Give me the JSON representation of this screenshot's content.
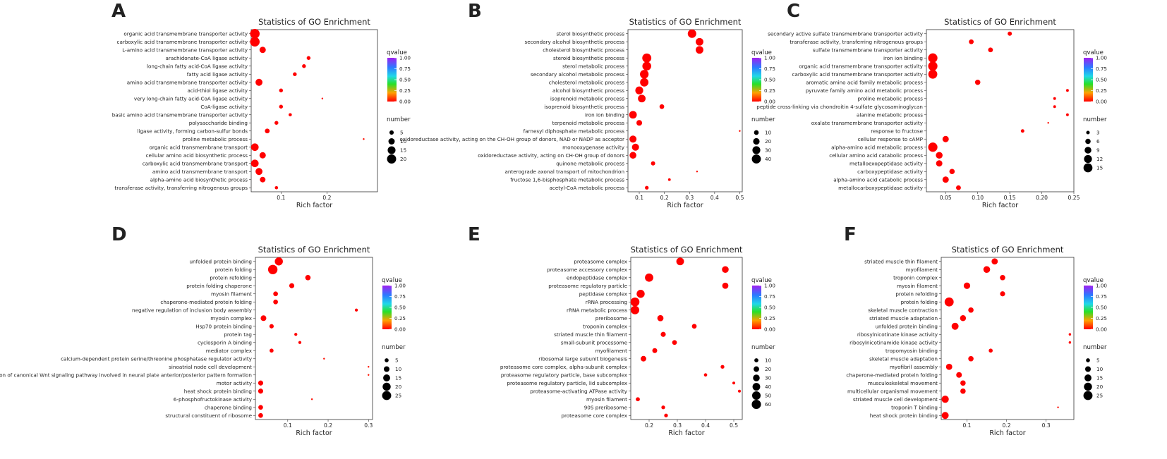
{
  "colors": {
    "qvalue_low": "#ff0000",
    "qvalue_high": "#a020f0",
    "dot": "#ee1c1c",
    "size_legend_dot": "#000000"
  },
  "chart_data": [
    {
      "type": "scatter",
      "panel": "A",
      "title": "Statistics of GO Enrichment",
      "xlabel": "Rich factor",
      "ylabel": "",
      "xlim": [
        0.035,
        0.31
      ],
      "xticks": [
        0.1,
        0.2
      ],
      "xtick_labels": [
        "0.1",
        "0.2"
      ],
      "qvalue_legend": {
        "title": "qvalue",
        "ticks": [
          1.0,
          0.75,
          0.5,
          0.25,
          0.0
        ],
        "tick_labels": [
          "1.00",
          "0.75",
          "0.50",
          "0.25",
          "0.00"
        ]
      },
      "size_legend": {
        "title": "number",
        "values": [
          5,
          10,
          15,
          20
        ],
        "min": 1,
        "max": 22
      },
      "categories": [
        "organic acid transmembrane transporter activity",
        "carboxylic acid transmembrane transporter activity",
        "L-amino acid transmembrane transporter activity",
        "arachidonate-CoA ligase activity",
        "long-chain fatty acid-CoA ligase activity",
        "fatty acid ligase activity",
        "amino acid transmembrane transporter activity",
        "acid-thiol ligase activity",
        "very long-chain fatty acid-CoA ligase activity",
        "CoA-ligase activity",
        "basic amino acid transmembrane transporter activity",
        "polysaccharide binding",
        "ligase activity, forming carbon-sulfur bonds",
        "proline metabolic process",
        "organic acid transmembrane transport",
        "cellular amino acid biosynthetic process",
        "carboxylic acid transmembrane transport",
        "amino acid transmembrane transport",
        "alpha-amino acid biosynthetic process",
        "transferase activity, transferring nitrogenous groups"
      ],
      "x": [
        0.043,
        0.043,
        0.06,
        0.16,
        0.15,
        0.13,
        0.052,
        0.1,
        0.19,
        0.1,
        0.12,
        0.09,
        0.07,
        0.28,
        0.043,
        0.06,
        0.043,
        0.052,
        0.06,
        0.09
      ],
      "number": [
        22,
        22,
        10,
        4,
        4,
        4,
        12,
        4,
        1,
        4,
        3,
        4,
        6,
        1,
        14,
        10,
        14,
        12,
        8,
        3
      ],
      "qvalue": [
        0.0,
        0.0,
        0.0,
        0.0,
        0.0,
        0.0,
        0.0,
        0.0,
        0.01,
        0.0,
        0.0,
        0.0,
        0.0,
        0.02,
        0.0,
        0.0,
        0.0,
        0.0,
        0.0,
        0.0
      ]
    },
    {
      "type": "scatter",
      "panel": "B",
      "title": "Statistics of GO Enrichment",
      "xlabel": "Rich factor",
      "ylabel": "",
      "xlim": [
        0.055,
        0.51
      ],
      "xticks": [
        0.1,
        0.2,
        0.3,
        0.4,
        0.5
      ],
      "xtick_labels": [
        "0.1",
        "0.2",
        "0.3",
        "0.4",
        "0.5"
      ],
      "qvalue_legend": {
        "title": "qvalue",
        "ticks": [
          1.0,
          0.75,
          0.5,
          0.25,
          0.0
        ],
        "tick_labels": [
          "1.00",
          "0.75",
          "0.50",
          "0.25",
          "0.00"
        ]
      },
      "size_legend": {
        "title": "number",
        "values": [
          10,
          20,
          30,
          40
        ],
        "min": 1,
        "max": 45
      },
      "categories": [
        "sterol biosynthetic process",
        "secondary alcohol biosynthetic process",
        "cholesterol biosynthetic process",
        "steroid biosynthetic process",
        "sterol metabolic process",
        "secondary alcohol metabolic process",
        "cholesterol metabolic process",
        "alcohol biosynthetic process",
        "isoprenoid metabolic process",
        "isoprenoid biosynthetic process",
        "iron ion binding",
        "terpenoid metabolic process",
        "farnesyl diphosphate metabolic process",
        "oxidoreductase activity, acting on the CH-OH group of donors, NAD or NADP as acceptor",
        "monooxygenase activity",
        "oxidoreductase activity, acting on CH-OH group of donors",
        "quinone metabolic process",
        "anterograde axonal transport of mitochondrion",
        "fructose 1,6-bisphosphate metabolic process",
        "acetyl-CoA metabolic process"
      ],
      "x": [
        0.31,
        0.34,
        0.34,
        0.13,
        0.13,
        0.12,
        0.12,
        0.1,
        0.11,
        0.19,
        0.075,
        0.1,
        0.5,
        0.075,
        0.085,
        0.075,
        0.155,
        0.33,
        0.22,
        0.13
      ],
      "number": [
        35,
        28,
        28,
        40,
        38,
        36,
        34,
        30,
        28,
        10,
        28,
        15,
        1,
        24,
        24,
        22,
        8,
        1,
        3,
        6
      ],
      "qvalue": [
        0.0,
        0.0,
        0.0,
        0.0,
        0.0,
        0.0,
        0.0,
        0.0,
        0.0,
        0.0,
        0.0,
        0.0,
        0.02,
        0.0,
        0.0,
        0.0,
        0.0,
        0.02,
        0.0,
        0.0
      ]
    },
    {
      "type": "scatter",
      "panel": "C",
      "title": "Statistics of GO Enrichment",
      "xlabel": "Rich factor",
      "ylabel": "",
      "xlim": [
        0.02,
        0.25
      ],
      "xticks": [
        0.05,
        0.1,
        0.15,
        0.2,
        0.25
      ],
      "xtick_labels": [
        "0.05",
        "0.10",
        "0.15",
        "0.20",
        "0.25"
      ],
      "qvalue_legend": {
        "title": "qvalue",
        "ticks": [
          1.0,
          0.75,
          0.5,
          0.25,
          0.0
        ],
        "tick_labels": [
          "1.00",
          "0.75",
          "0.50",
          "0.25",
          "0.00"
        ]
      },
      "size_legend": {
        "title": "number",
        "values": [
          3,
          6,
          9,
          12,
          15
        ],
        "min": 1,
        "max": 17
      },
      "categories": [
        "secondary active sulfate transmembrane transporter activity",
        "transferase activity, transferring nitrogenous groups",
        "sulfate transmembrane transporter activity",
        "iron ion binding",
        "organic acid transmembrane transporter activity",
        "carboxylic acid transmembrane transporter activity",
        "aromatic amino acid family metabolic process",
        "pyruvate family amino acid metabolic process",
        "proline metabolic process",
        "peptide cross-linking via chondroitin 4-sulfate glycosaminoglycan",
        "alanine metabolic process",
        "oxalate transmembrane transporter activity",
        "response to fructose",
        "cellular response to cAMP",
        "alpha-amino acid metabolic process",
        "cellular amino acid catabolic process",
        "metalloexopeptidase activity",
        "carboxypeptidase activity",
        "alpha-amino acid catabolic process",
        "metallocarboxypeptidase activity"
      ],
      "x": [
        0.15,
        0.09,
        0.12,
        0.03,
        0.03,
        0.03,
        0.1,
        0.24,
        0.22,
        0.22,
        0.24,
        0.21,
        0.17,
        0.05,
        0.03,
        0.04,
        0.04,
        0.06,
        0.05,
        0.07
      ],
      "number": [
        4,
        5,
        5,
        16,
        16,
        15,
        6,
        2,
        2,
        2,
        2,
        1,
        3,
        8,
        16,
        9,
        8,
        6,
        8,
        5
      ],
      "qvalue": [
        0.0,
        0.0,
        0.0,
        0.0,
        0.0,
        0.0,
        0.0,
        0.0,
        0.0,
        0.0,
        0.0,
        0.02,
        0.0,
        0.0,
        0.0,
        0.0,
        0.0,
        0.0,
        0.0,
        0.0
      ]
    },
    {
      "type": "scatter",
      "panel": "D",
      "title": "Statistics of GO Enrichment",
      "xlabel": "Rich factor",
      "ylabel": "",
      "xlim": [
        0.02,
        0.31
      ],
      "xticks": [
        0.1,
        0.2,
        0.3
      ],
      "xtick_labels": [
        "0.1",
        "0.2",
        "0.3"
      ],
      "qvalue_legend": {
        "title": "qvalue",
        "ticks": [
          1.0,
          0.75,
          0.5,
          0.25,
          0.0
        ],
        "tick_labels": [
          "1.00",
          "0.75",
          "0.50",
          "0.25",
          "0.00"
        ]
      },
      "size_legend": {
        "title": "number",
        "values": [
          5,
          10,
          15,
          20,
          25
        ],
        "min": 1,
        "max": 28
      },
      "categories": [
        "unfolded protein binding",
        "protein folding",
        "protein refolding",
        "protein folding chaperone",
        "myosin filament",
        "chaperone-mediated protein folding",
        "negative regulation of inclusion body assembly",
        "myosin complex",
        "Hsp70 protein binding",
        "protein tag",
        "cyclosporin A binding",
        "mediator complex",
        "calcium-dependent protein serine/threonine phosphatase regulator activity",
        "sinoatrial node cell development",
        "regulation of canonical Wnt signaling pathway involved in neural plate anterior/posterior pattern formation",
        "motor activity",
        "heat shock protein binding",
        "6-phosphofructokinase activity",
        "chaperone binding",
        "structural constituent of ribosome"
      ],
      "x": [
        0.078,
        0.063,
        0.15,
        0.11,
        0.07,
        0.07,
        0.27,
        0.04,
        0.06,
        0.12,
        0.13,
        0.06,
        0.19,
        0.3,
        0.3,
        0.033,
        0.033,
        0.16,
        0.033,
        0.033
      ],
      "number": [
        20,
        27,
        9,
        8,
        7,
        7,
        3,
        10,
        6,
        3,
        3,
        5,
        1,
        1,
        1,
        8,
        8,
        1,
        7,
        7
      ],
      "qvalue": [
        0.0,
        0.0,
        0.0,
        0.0,
        0.0,
        0.0,
        0.0,
        0.0,
        0.0,
        0.0,
        0.0,
        0.0,
        0.02,
        0.03,
        0.03,
        0.0,
        0.0,
        0.02,
        0.0,
        0.0
      ]
    },
    {
      "type": "scatter",
      "panel": "E",
      "title": "Statistics of GO Enrichment",
      "xlabel": "Rich factor",
      "ylabel": "",
      "xlim": [
        0.135,
        0.53
      ],
      "xticks": [
        0.2,
        0.3,
        0.4,
        0.5
      ],
      "xtick_labels": [
        "0.2",
        "0.3",
        "0.4",
        "0.5"
      ],
      "qvalue_legend": {
        "title": "qvalue",
        "ticks": [
          1.0,
          0.75,
          0.5,
          0.25,
          0.0
        ],
        "tick_labels": [
          "1.00",
          "0.75",
          "0.50",
          "0.25",
          "0.00"
        ]
      },
      "size_legend": {
        "title": "number",
        "values": [
          10,
          20,
          30,
          40,
          50,
          60
        ],
        "min": 1,
        "max": 65
      },
      "categories": [
        "proteasome complex",
        "proteasome accessory complex",
        "endopeptidase complex",
        "proteasome regulatory particle",
        "peptidase complex",
        "rRNA processing",
        "rRNA metabolic process",
        "preribosome",
        "troponin complex",
        "striated muscle thin filament",
        "small-subunit processome",
        "myofilament",
        "ribosomal large subunit biogenesis",
        "proteasome core complex, alpha-subunit complex",
        "proteasome regulatory particle, base subcomplex",
        "proteasome regulatory particle, lid subcomplex",
        "proteasome-activating ATPase activity",
        "myosin filament",
        "90S preribosome",
        "proteasome core complex"
      ],
      "x": [
        0.31,
        0.47,
        0.2,
        0.47,
        0.17,
        0.15,
        0.15,
        0.24,
        0.36,
        0.25,
        0.29,
        0.22,
        0.18,
        0.46,
        0.4,
        0.5,
        0.52,
        0.16,
        0.25,
        0.26
      ],
      "number": [
        40,
        30,
        48,
        25,
        45,
        55,
        50,
        25,
        14,
        16,
        14,
        15,
        20,
        8,
        6,
        4,
        4,
        10,
        8,
        8
      ],
      "qvalue": [
        0.0,
        0.0,
        0.0,
        0.0,
        0.0,
        0.0,
        0.0,
        0.0,
        0.0,
        0.0,
        0.0,
        0.0,
        0.0,
        0.0,
        0.0,
        0.0,
        0.0,
        0.0,
        0.0,
        0.0
      ]
    },
    {
      "type": "scatter",
      "panel": "F",
      "title": "Statistics of GO Enrichment",
      "xlabel": "Rich factor",
      "ylabel": "",
      "xlim": [
        0.035,
        0.37
      ],
      "xticks": [
        0.1,
        0.2,
        0.3
      ],
      "xtick_labels": [
        "0.1",
        "0.2",
        "0.3"
      ],
      "qvalue_legend": {
        "title": "qvalue",
        "ticks": [
          1.0,
          0.75,
          0.5,
          0.25,
          0.0
        ],
        "tick_labels": [
          "1.00",
          "0.75",
          "0.50",
          "0.25",
          "0.00"
        ]
      },
      "size_legend": {
        "title": "number",
        "values": [
          5,
          10,
          15,
          20,
          25
        ],
        "min": 1,
        "max": 28
      },
      "categories": [
        "striated muscle thin filament",
        "myofilament",
        "troponin complex",
        "myosin filament",
        "protein refolding",
        "protein folding",
        "skeletal muscle contraction",
        "striated muscle adaptation",
        "unfolded protein binding",
        "ribosylnicotinate kinase activity",
        "ribosylnicotinamide kinase activity",
        "tropomyosin binding",
        "skeletal muscle adaptation",
        "myofibril assembly",
        "chaperone-mediated protein folding",
        "musculoskeletal movement",
        "multicellular organismal movement",
        "striated muscle cell development",
        "troponin T binding",
        "heat shock protein binding"
      ],
      "x": [
        0.17,
        0.15,
        0.19,
        0.1,
        0.19,
        0.055,
        0.11,
        0.09,
        0.07,
        0.36,
        0.36,
        0.16,
        0.11,
        0.055,
        0.08,
        0.09,
        0.09,
        0.045,
        0.33,
        0.045
      ],
      "number": [
        12,
        14,
        9,
        13,
        8,
        25,
        9,
        11,
        15,
        2,
        2,
        5,
        9,
        12,
        10,
        9,
        9,
        16,
        1,
        15
      ],
      "qvalue": [
        0.0,
        0.0,
        0.0,
        0.0,
        0.0,
        0.0,
        0.0,
        0.0,
        0.0,
        0.0,
        0.0,
        0.0,
        0.0,
        0.0,
        0.0,
        0.0,
        0.0,
        0.0,
        0.02,
        0.0
      ]
    }
  ]
}
